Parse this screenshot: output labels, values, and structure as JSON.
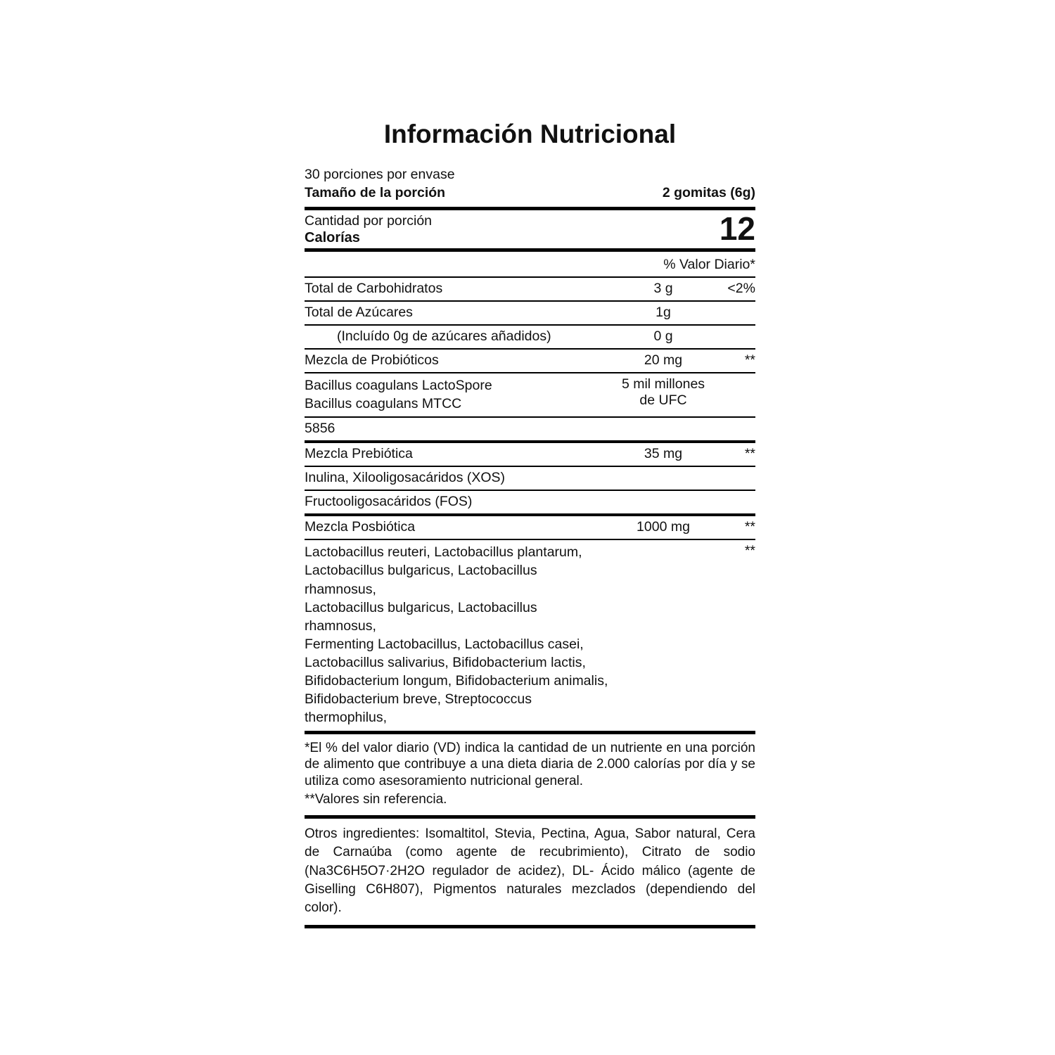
{
  "title": "Información Nutricional",
  "servings_per_container": "30 porciones por envase",
  "serving_size": {
    "label": "Tamaño de la porción",
    "value": "2 gomitas (6g)"
  },
  "calories": {
    "label": "Cantidad por porción",
    "name": "Calorías",
    "value": "12"
  },
  "daily_value_header": "% Valor Diario*",
  "rows": [
    {
      "name": "Total de Carbohidratos",
      "amount": "3 g",
      "dv": "<2%",
      "border": "thin"
    },
    {
      "name": "Total de Azúcares",
      "amount": "1g",
      "dv": "",
      "border": "thin"
    },
    {
      "name": "(Incluído 0g de azúcares añadidos)",
      "indent": true,
      "amount": "0 g",
      "dv": "",
      "border": "thin"
    },
    {
      "name": "Mezcla de Probióticos",
      "amount": "20 mg",
      "dv": "**",
      "border": "thin"
    },
    {
      "name_lines": [
        "Bacillus coagulans LactoSpore",
        "Bacillus coagulans MTCC"
      ],
      "amount_lines": [
        "5 mil millones",
        "de UFC"
      ],
      "dv": "",
      "border": "thin"
    },
    {
      "name": "5856",
      "amount": "",
      "dv": "",
      "border": "medium"
    },
    {
      "name": "Mezcla Prebiótica",
      "amount": "35 mg",
      "dv": "**",
      "border": "thin"
    },
    {
      "name": "Inulina, Xilooligosacáridos (XOS)",
      "amount": "",
      "dv": "",
      "border": "thin"
    },
    {
      "name": "Fructooligosacáridos (FOS)",
      "amount": "",
      "dv": "",
      "border": "medium"
    },
    {
      "name": "Mezcla Posbiótica",
      "amount": "1000 mg",
      "dv": "**",
      "border": "thin"
    },
    {
      "name_lines": [
        "Lactobacillus reuteri, Lactobacillus plantarum,",
        "Lactobacillus bulgaricus, Lactobacillus rhamnosus,",
        "Lactobacillus bulgaricus, Lactobacillus rhamnosus,",
        "Fermenting Lactobacillus, Lactobacillus casei,",
        "Lactobacillus salivarius, Bifidobacterium lactis,",
        "Bifidobacterium longum, Bifidobacterium animalis,",
        "Bifidobacterium breve, Streptococcus thermophilus,"
      ],
      "amount": "",
      "dv": "**",
      "border": "thick"
    }
  ],
  "footnotes": {
    "daily_value": "*El % del valor diario (VD) indica la cantidad de un nutriente en una porción de alimento que contribuye a una dieta diaria de 2.000 calorías por día y se utiliza como asesoramiento nutricional general.",
    "no_reference": "**Valores sin referencia."
  },
  "other_ingredients": "Otros ingredientes:  Isomaltitol, Stevia, Pectina, Agua, Sabor natural, Cera de Carnaúba (como agente de recubrimiento), Citrato de sodio (Na3C6H5O7·2H2O regulador de acidez),  DL- Ácido málico  (agente de Giselling C6H807), Pigmentos naturales mezclados (dependiendo del color).",
  "colors": {
    "text": "#111111",
    "rule": "#000000",
    "background": "#ffffff"
  }
}
